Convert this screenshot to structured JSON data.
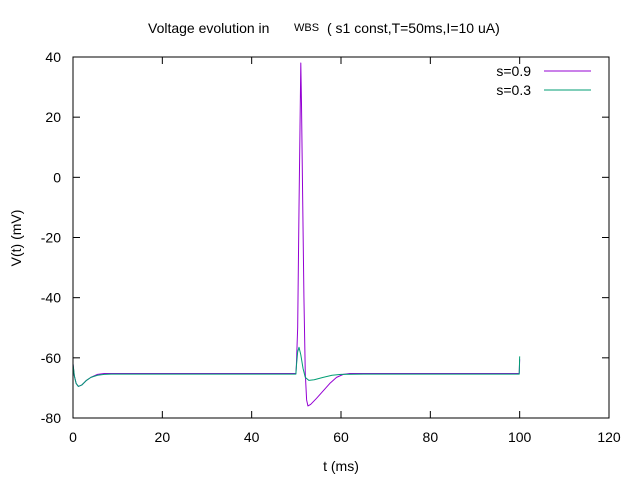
{
  "chart_data": {
    "type": "line",
    "title": "Voltage evolution in",
    "title_sub": "WBS",
    "title_rest": "( s1 const,T=50ms,I=10 uA)",
    "xlabel": "t (ms)",
    "ylabel": "V(t) (mV)",
    "xlim": [
      0,
      120
    ],
    "ylim": [
      -80,
      40
    ],
    "xticks": [
      0,
      20,
      40,
      60,
      80,
      100,
      120
    ],
    "yticks": [
      -80,
      -60,
      -40,
      -20,
      0,
      20,
      40
    ],
    "grid": false,
    "legend_position": "top-right",
    "series": [
      {
        "name": "s=0.9",
        "color": "#9400d3",
        "points": [
          [
            0,
            -62
          ],
          [
            0.3,
            -66
          ],
          [
            0.7,
            -68.5
          ],
          [
            1.2,
            -69.5
          ],
          [
            2,
            -69
          ],
          [
            3,
            -67.5
          ],
          [
            4,
            -66.5
          ],
          [
            5.5,
            -65.5
          ],
          [
            7,
            -65.2
          ],
          [
            8.5,
            -65.2
          ],
          [
            20,
            -65.2
          ],
          [
            40,
            -65.2
          ],
          [
            49.9,
            -65.2
          ],
          [
            50,
            -63
          ],
          [
            50.3,
            -50
          ],
          [
            50.6,
            -10
          ],
          [
            50.85,
            20
          ],
          [
            51,
            38
          ],
          [
            51.15,
            25
          ],
          [
            51.4,
            -5
          ],
          [
            51.7,
            -40
          ],
          [
            52,
            -65
          ],
          [
            52.3,
            -74
          ],
          [
            52.6,
            -76
          ],
          [
            53.2,
            -75.5
          ],
          [
            54.5,
            -73.5
          ],
          [
            56,
            -71
          ],
          [
            57.5,
            -68.5
          ],
          [
            59,
            -66.5
          ],
          [
            60.5,
            -65.5
          ],
          [
            62,
            -65.2
          ],
          [
            70,
            -65.2
          ],
          [
            90,
            -65.2
          ],
          [
            99.9,
            -65.2
          ],
          [
            100,
            -60.5
          ]
        ]
      },
      {
        "name": "s=0.3",
        "color": "#009e73",
        "points": [
          [
            0,
            -62
          ],
          [
            0.3,
            -66
          ],
          [
            0.7,
            -68.5
          ],
          [
            1.2,
            -69.5
          ],
          [
            2,
            -69
          ],
          [
            3,
            -67.5
          ],
          [
            4,
            -66.5
          ],
          [
            5.5,
            -65.8
          ],
          [
            7,
            -65.5
          ],
          [
            8.5,
            -65.4
          ],
          [
            20,
            -65.4
          ],
          [
            40,
            -65.4
          ],
          [
            49.9,
            -65.4
          ],
          [
            50,
            -63
          ],
          [
            50.3,
            -58
          ],
          [
            50.6,
            -56.5
          ],
          [
            51,
            -59
          ],
          [
            51.5,
            -63.5
          ],
          [
            52,
            -66.5
          ],
          [
            52.8,
            -67.5
          ],
          [
            54,
            -67.3
          ],
          [
            56,
            -66.5
          ],
          [
            58,
            -65.8
          ],
          [
            60,
            -65.5
          ],
          [
            65,
            -65.4
          ],
          [
            80,
            -65.4
          ],
          [
            99.9,
            -65.4
          ],
          [
            100,
            -59.5
          ]
        ]
      }
    ]
  }
}
